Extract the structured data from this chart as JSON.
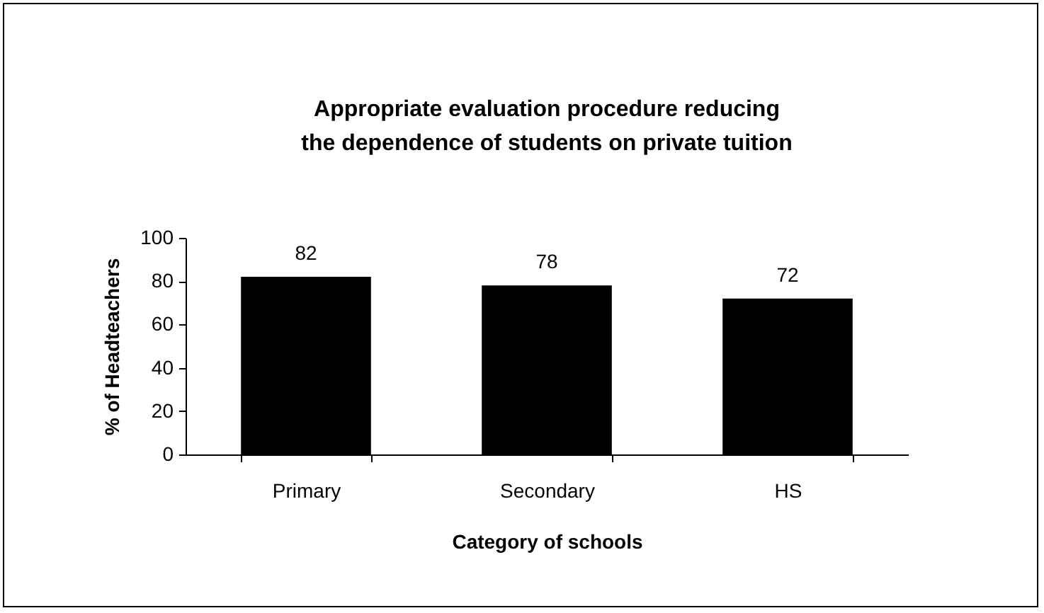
{
  "chart_data": {
    "type": "bar",
    "title": "Appropriate evaluation procedure reducing the dependence of students on private tuition",
    "xlabel": "Category of schools",
    "ylabel": "% of Headteachers",
    "categories": [
      "Primary",
      "Secondary",
      "HS"
    ],
    "values": [
      82,
      78,
      72
    ],
    "color": "#000000",
    "ylim": [
      0,
      100
    ],
    "yticks": [
      0,
      20,
      40,
      60,
      80,
      100
    ],
    "data_labels": true,
    "grid": false
  }
}
